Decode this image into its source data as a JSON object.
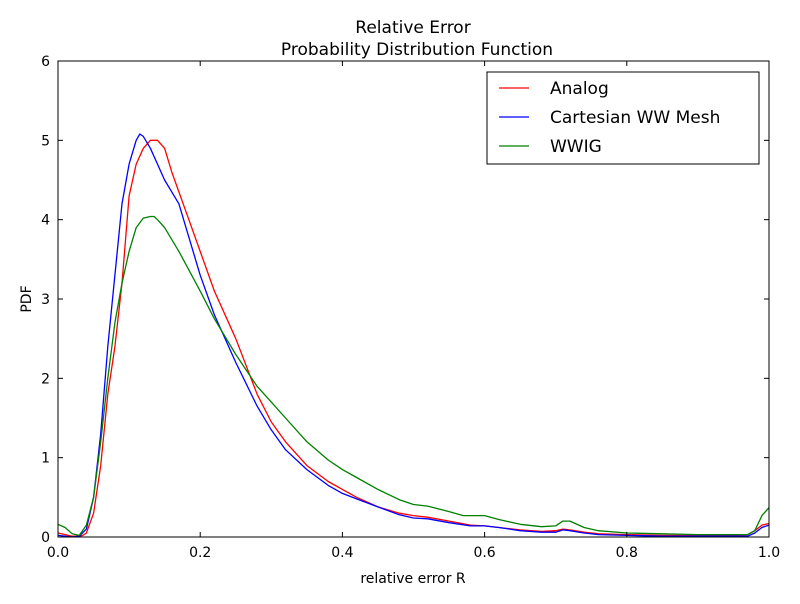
{
  "chart_data": {
    "type": "line",
    "title": "Relative Error",
    "subtitle": "Probability Distribution Function",
    "xlabel": "relative error R",
    "ylabel": "PDF",
    "xlim": [
      0.0,
      1.0
    ],
    "ylim": [
      0,
      6
    ],
    "xticks": [
      0.0,
      0.2,
      0.4,
      0.6,
      0.8,
      1.0
    ],
    "xtick_labels": [
      "0.0",
      "0.2",
      "0.4",
      "0.6",
      "0.8",
      "1.0"
    ],
    "yticks": [
      0,
      1,
      2,
      3,
      4,
      5,
      6
    ],
    "ytick_labels": [
      "0",
      "1",
      "2",
      "3",
      "4",
      "5",
      "6"
    ],
    "grid": false,
    "legend_position": "top-right",
    "series": [
      {
        "name": "Analog",
        "color": "#ff0000",
        "x": [
          0.0,
          0.01,
          0.02,
          0.03,
          0.035,
          0.04,
          0.05,
          0.06,
          0.07,
          0.08,
          0.09,
          0.1,
          0.11,
          0.12,
          0.13,
          0.14,
          0.15,
          0.16,
          0.18,
          0.2,
          0.22,
          0.25,
          0.28,
          0.3,
          0.32,
          0.35,
          0.38,
          0.4,
          0.42,
          0.45,
          0.48,
          0.5,
          0.52,
          0.55,
          0.58,
          0.6,
          0.62,
          0.65,
          0.68,
          0.7,
          0.71,
          0.72,
          0.74,
          0.76,
          0.8,
          0.85,
          0.9,
          0.95,
          0.97,
          0.98,
          0.99,
          1.0
        ],
        "y": [
          0.05,
          0.03,
          0.01,
          0.01,
          0.02,
          0.05,
          0.3,
          0.9,
          1.8,
          2.4,
          3.2,
          4.3,
          4.7,
          4.9,
          5.0,
          5.0,
          4.9,
          4.6,
          4.1,
          3.6,
          3.1,
          2.5,
          1.8,
          1.45,
          1.2,
          0.9,
          0.7,
          0.6,
          0.5,
          0.38,
          0.3,
          0.27,
          0.25,
          0.2,
          0.15,
          0.14,
          0.12,
          0.09,
          0.07,
          0.08,
          0.1,
          0.09,
          0.06,
          0.04,
          0.03,
          0.02,
          0.02,
          0.02,
          0.03,
          0.08,
          0.15,
          0.17
        ]
      },
      {
        "name": "Cartesian WW Mesh",
        "color": "#0000ff",
        "x": [
          0.0,
          0.01,
          0.02,
          0.03,
          0.04,
          0.05,
          0.06,
          0.07,
          0.08,
          0.09,
          0.1,
          0.11,
          0.115,
          0.12,
          0.13,
          0.14,
          0.15,
          0.17,
          0.2,
          0.22,
          0.25,
          0.28,
          0.3,
          0.32,
          0.35,
          0.38,
          0.4,
          0.42,
          0.45,
          0.48,
          0.5,
          0.52,
          0.55,
          0.58,
          0.6,
          0.62,
          0.65,
          0.68,
          0.7,
          0.71,
          0.72,
          0.74,
          0.76,
          0.8,
          0.85,
          0.9,
          0.95,
          0.97,
          0.98,
          0.99,
          1.0
        ],
        "y": [
          0.02,
          0.01,
          0.0,
          0.01,
          0.1,
          0.5,
          1.3,
          2.4,
          3.3,
          4.2,
          4.7,
          5.0,
          5.08,
          5.05,
          4.9,
          4.7,
          4.5,
          4.2,
          3.3,
          2.8,
          2.2,
          1.65,
          1.35,
          1.1,
          0.85,
          0.65,
          0.55,
          0.48,
          0.38,
          0.28,
          0.24,
          0.23,
          0.18,
          0.14,
          0.14,
          0.12,
          0.08,
          0.06,
          0.06,
          0.09,
          0.08,
          0.05,
          0.03,
          0.02,
          0.01,
          0.01,
          0.01,
          0.01,
          0.05,
          0.12,
          0.15
        ]
      },
      {
        "name": "WWIG",
        "color": "#008000",
        "x": [
          0.0,
          0.01,
          0.02,
          0.03,
          0.04,
          0.05,
          0.06,
          0.07,
          0.08,
          0.09,
          0.1,
          0.11,
          0.12,
          0.13,
          0.135,
          0.14,
          0.15,
          0.17,
          0.2,
          0.22,
          0.25,
          0.28,
          0.3,
          0.32,
          0.35,
          0.38,
          0.4,
          0.42,
          0.45,
          0.48,
          0.5,
          0.52,
          0.55,
          0.57,
          0.58,
          0.6,
          0.62,
          0.65,
          0.68,
          0.7,
          0.71,
          0.72,
          0.74,
          0.76,
          0.8,
          0.85,
          0.9,
          0.95,
          0.97,
          0.98,
          0.99,
          1.0
        ],
        "y": [
          0.16,
          0.12,
          0.04,
          0.02,
          0.15,
          0.5,
          1.2,
          2.0,
          2.7,
          3.2,
          3.6,
          3.9,
          4.02,
          4.04,
          4.04,
          4.0,
          3.9,
          3.6,
          3.1,
          2.75,
          2.3,
          1.9,
          1.7,
          1.5,
          1.2,
          0.97,
          0.85,
          0.75,
          0.6,
          0.47,
          0.41,
          0.39,
          0.32,
          0.27,
          0.27,
          0.27,
          0.22,
          0.16,
          0.13,
          0.14,
          0.2,
          0.2,
          0.12,
          0.08,
          0.05,
          0.04,
          0.03,
          0.03,
          0.03,
          0.08,
          0.27,
          0.37
        ]
      }
    ]
  }
}
